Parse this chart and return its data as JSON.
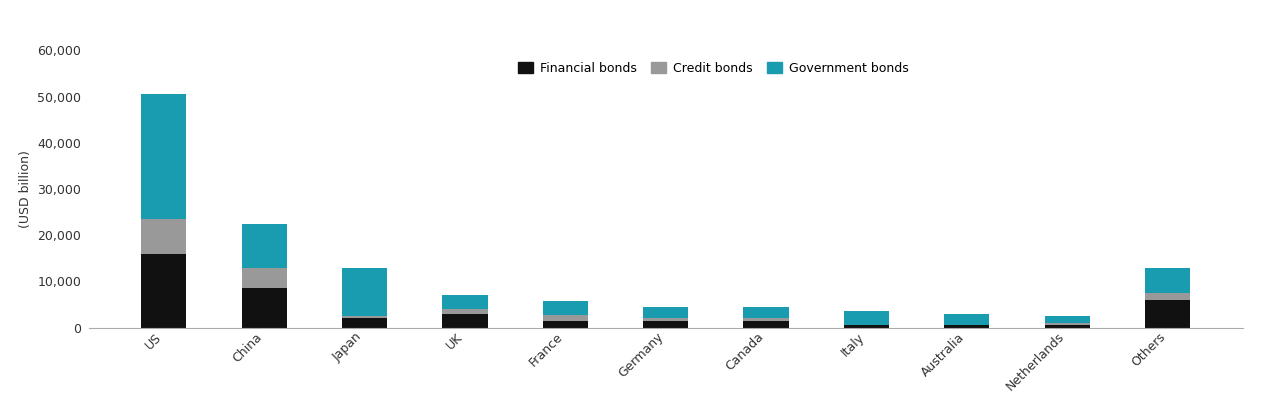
{
  "categories": [
    "US",
    "China",
    "Japan",
    "UK",
    "France",
    "Germany",
    "Canada",
    "Italy",
    "Australia",
    "Netherlands",
    "Others"
  ],
  "financial_bonds": [
    16000,
    8500,
    2000,
    3000,
    1500,
    1500,
    1500,
    500,
    500,
    500,
    6000
  ],
  "credit_bonds": [
    7500,
    4500,
    500,
    1000,
    1200,
    500,
    500,
    0,
    0,
    500,
    1500
  ],
  "government_bonds": [
    27000,
    9500,
    10500,
    3000,
    3000,
    2500,
    2500,
    3000,
    2500,
    1500,
    5500
  ],
  "colors": {
    "financial": "#111111",
    "credit": "#999999",
    "government": "#1a9cb0"
  },
  "ylabel": "(USD billion)",
  "ylim": [
    0,
    60000
  ],
  "yticks": [
    0,
    10000,
    20000,
    30000,
    40000,
    50000,
    60000
  ],
  "ytick_labels": [
    "0",
    "10,000",
    "20,000",
    "30,000",
    "40,000",
    "50,000",
    "60,000"
  ],
  "legend_labels": [
    "Financial bonds",
    "Credit bonds",
    "Government bonds"
  ],
  "bar_width": 0.45,
  "figsize": [
    12.68,
    4.2
  ],
  "dpi": 100
}
